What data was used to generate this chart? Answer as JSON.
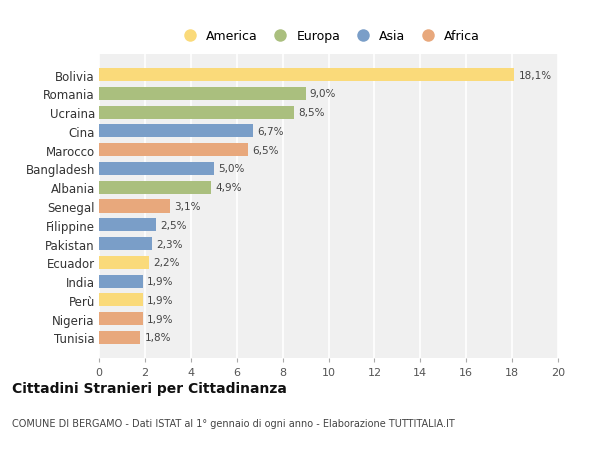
{
  "categories": [
    "Tunisia",
    "Nigeria",
    "Perù",
    "India",
    "Ecuador",
    "Pakistan",
    "Filippine",
    "Senegal",
    "Albania",
    "Bangladesh",
    "Marocco",
    "Cina",
    "Ucraina",
    "Romania",
    "Bolivia"
  ],
  "values": [
    1.8,
    1.9,
    1.9,
    1.9,
    2.2,
    2.3,
    2.5,
    3.1,
    4.9,
    5.0,
    6.5,
    6.7,
    8.5,
    9.0,
    18.1
  ],
  "labels": [
    "1,8%",
    "1,9%",
    "1,9%",
    "1,9%",
    "2,2%",
    "2,3%",
    "2,5%",
    "3,1%",
    "4,9%",
    "5,0%",
    "6,5%",
    "6,7%",
    "8,5%",
    "9,0%",
    "18,1%"
  ],
  "continents": [
    "Africa",
    "Africa",
    "America",
    "Asia",
    "America",
    "Asia",
    "Asia",
    "Africa",
    "Europa",
    "Asia",
    "Africa",
    "Asia",
    "Europa",
    "Europa",
    "America"
  ],
  "colors": {
    "America": "#FADA7A",
    "Europa": "#AABF7E",
    "Asia": "#7A9EC8",
    "Africa": "#E8A87C"
  },
  "legend_order": [
    "America",
    "Europa",
    "Asia",
    "Africa"
  ],
  "title": "Cittadini Stranieri per Cittadinanza",
  "subtitle": "COMUNE DI BERGAMO - Dati ISTAT al 1° gennaio di ogni anno - Elaborazione TUTTITALIA.IT",
  "xlim": [
    0,
    20
  ],
  "xticks": [
    0,
    2,
    4,
    6,
    8,
    10,
    12,
    14,
    16,
    18,
    20
  ],
  "background_color": "#ffffff",
  "plot_bg_color": "#f0f0f0"
}
